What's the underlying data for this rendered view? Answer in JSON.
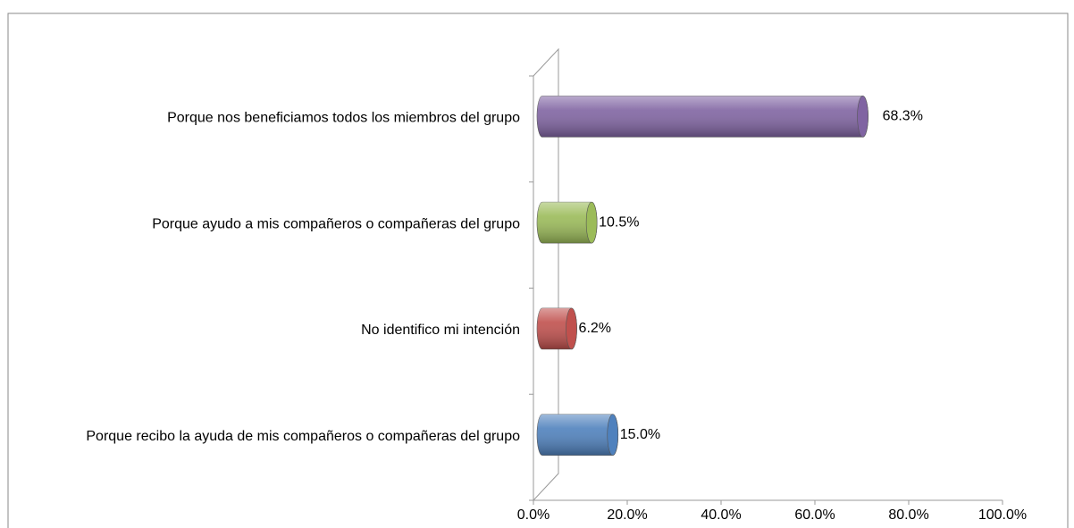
{
  "chart_data": {
    "type": "bar",
    "orientation": "horizontal",
    "categories": [
      "Porque nos beneficiamos todos los miembros del grupo",
      "Porque ayudo a mis compañeros o compañeras del grupo",
      "No identifico mi intención",
      "Porque recibo la ayuda de mis compañeros o compañeras del grupo"
    ],
    "values": [
      68.3,
      10.5,
      6.2,
      15.0
    ],
    "value_labels": [
      "68.3%",
      "10.5%",
      "6.2%",
      "15.0%"
    ],
    "colors": [
      "#8064a2",
      "#9bbb59",
      "#c0504d",
      "#4f81bd"
    ],
    "xlim": [
      0,
      100
    ],
    "xticks": [
      {
        "value": 0,
        "label": "0.0%"
      },
      {
        "value": 20,
        "label": "20.0%"
      },
      {
        "value": 40,
        "label": "40.0%"
      },
      {
        "value": 60,
        "label": "60.0%"
      },
      {
        "value": 80,
        "label": "80.0%"
      },
      {
        "value": 100,
        "label": "100.0%"
      }
    ],
    "grid": false
  }
}
